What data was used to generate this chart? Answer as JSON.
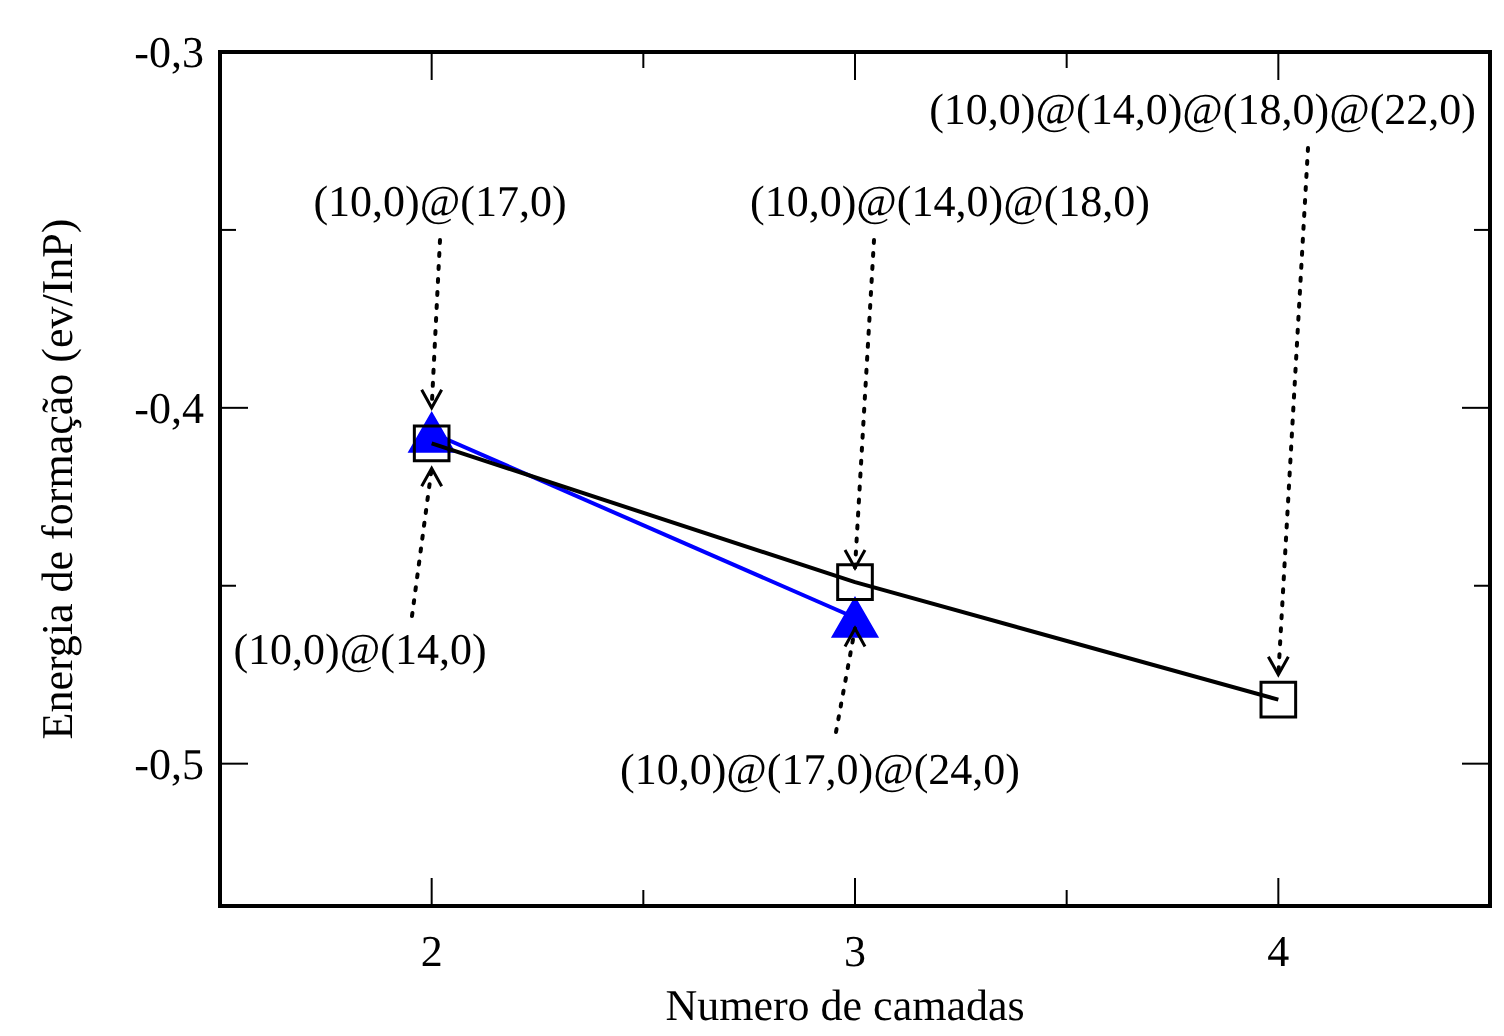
{
  "chart_data": {
    "type": "line",
    "xlabel": "Numero de camadas",
    "ylabel": "Energia de formação (ev/InP)",
    "x": [
      2,
      3,
      4
    ],
    "xlim": [
      1.5,
      4.5
    ],
    "xticks": [
      2,
      {
        "value": 2.5,
        "label": null
      },
      3,
      {
        "value": 3.5,
        "label": null
      },
      4
    ],
    "ylim": [
      -0.54,
      -0.3
    ],
    "yticks": [
      {
        "value": -0.5,
        "label": "-0,5"
      },
      {
        "value": -0.45,
        "label": null
      },
      {
        "value": -0.4,
        "label": "-0,4"
      },
      {
        "value": -0.35,
        "label": null
      },
      {
        "value": -0.3,
        "label": "-0,3"
      }
    ],
    "series": [
      {
        "color": "#000000",
        "marker": "square",
        "values": [
          -0.41,
          -0.449,
          -0.482
        ]
      },
      {
        "color": "#0000ff",
        "marker": "triangle",
        "values": [
          -0.407,
          -0.459,
          null
        ]
      }
    ],
    "annotations": [
      {
        "text": "(10,0)@(17,0)",
        "x": 2,
        "y": -0.4
      },
      {
        "text": "(10,0)@(14,0)",
        "x": 2,
        "y": -0.417
      },
      {
        "text": "(10,0)@(14,0)@(18,0)",
        "x": 3,
        "y": -0.445
      },
      {
        "text": "(10,0)@(14,0)@(18,0)@(22,0)",
        "x": 4,
        "y": -0.475
      },
      {
        "text": "(10,0)@(17,0)@(24,0)",
        "x": 3,
        "y": -0.462
      }
    ]
  }
}
